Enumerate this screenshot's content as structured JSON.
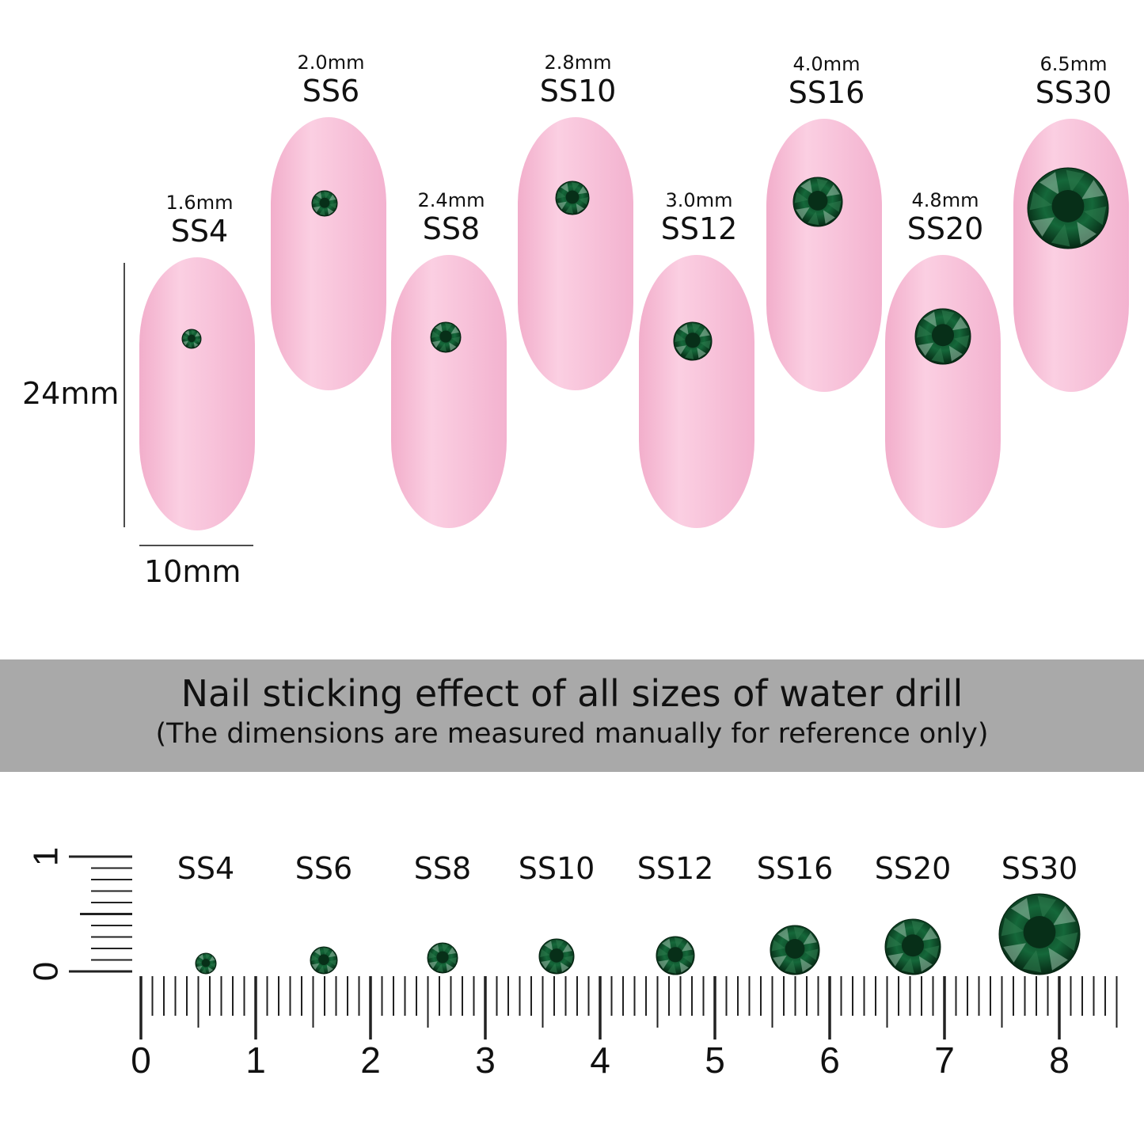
{
  "colors": {
    "nail": "#f6b9d4",
    "stone": "#0d4a2a",
    "banner": "#a9a9a9"
  },
  "nails": [
    {
      "size": "SS4",
      "mm": "1.6mm"
    },
    {
      "size": "SS6",
      "mm": "2.0mm"
    },
    {
      "size": "SS8",
      "mm": "2.4mm"
    },
    {
      "size": "SS10",
      "mm": "2.8mm"
    },
    {
      "size": "SS12",
      "mm": "3.0mm"
    },
    {
      "size": "SS16",
      "mm": "4.0mm"
    },
    {
      "size": "SS20",
      "mm": "4.8mm"
    },
    {
      "size": "SS30",
      "mm": "6.5mm"
    }
  ],
  "dimensions": {
    "height": "24mm",
    "width": "10mm"
  },
  "banner": {
    "title": "Nail sticking effect of all sizes of water drill",
    "subtitle": "(The dimensions are measured manually for reference only)"
  },
  "ruler": {
    "labels": [
      "0",
      "1",
      "2",
      "3",
      "4",
      "5",
      "6",
      "7",
      "8"
    ],
    "vertical_labels": [
      "0",
      "1"
    ]
  },
  "stones_labels": [
    "SS4",
    "SS6",
    "SS8",
    "SS10",
    "SS12",
    "SS16",
    "SS20",
    "SS30"
  ]
}
